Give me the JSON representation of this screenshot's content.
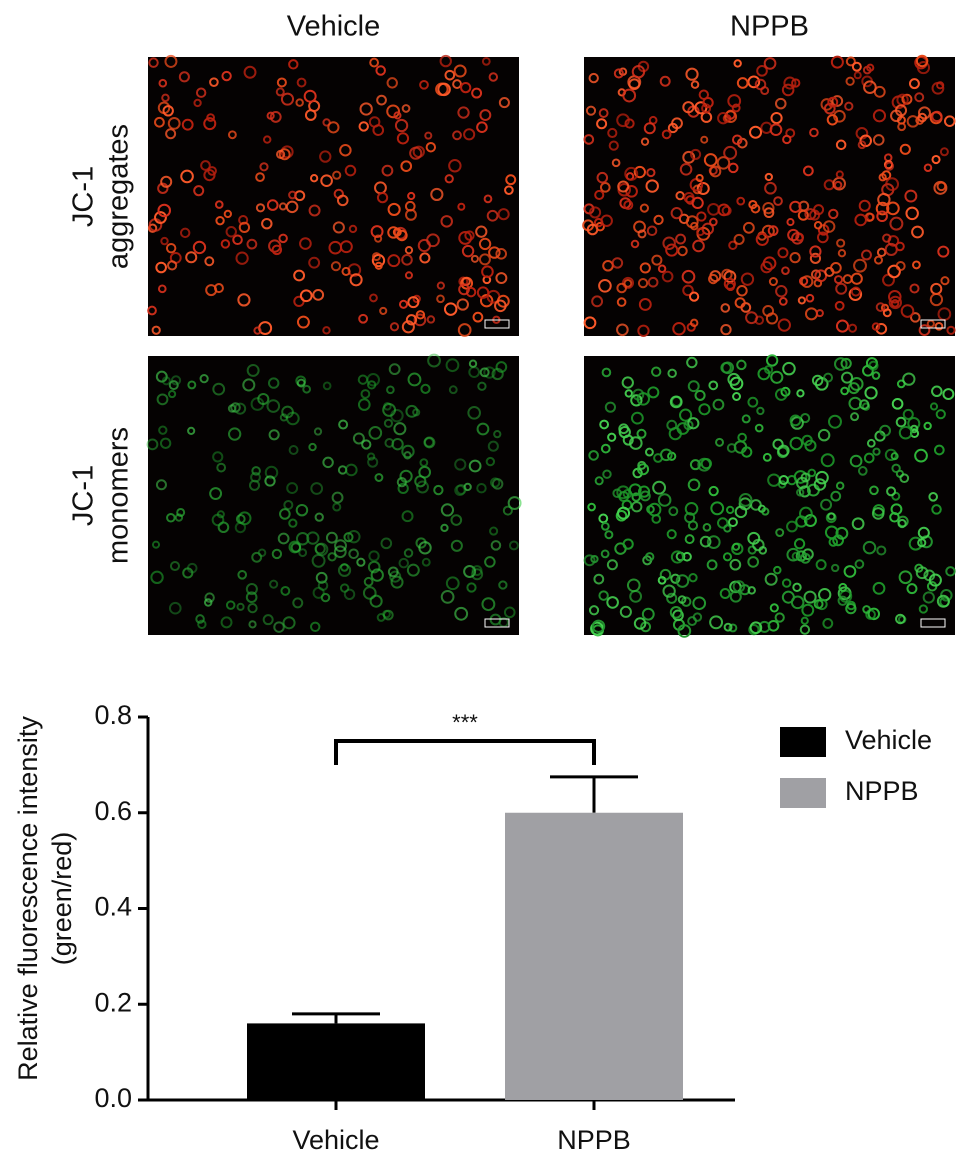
{
  "panels": {
    "columns": [
      "Vehicle",
      "NPPB"
    ],
    "rows": [
      [
        "JC-1",
        "aggregates"
      ],
      [
        "JC-1",
        "monomers"
      ]
    ]
  },
  "chart_data": {
    "type": "bar",
    "y_label": [
      "Relative fluorescence intensity",
      "(green/red)"
    ],
    "categories": [
      "Vehicle",
      "NPPB"
    ],
    "values": [
      0.16,
      0.6
    ],
    "errors": [
      0.02,
      0.075
    ],
    "colors": [
      "#000000",
      "#a0a0a4"
    ],
    "ylim": [
      0,
      0.8
    ],
    "yticks": [
      {
        "value": 0,
        "label": "0.0"
      },
      0.2,
      0.4,
      0.6,
      0.8
    ],
    "annotation": "***",
    "legend": "right"
  }
}
